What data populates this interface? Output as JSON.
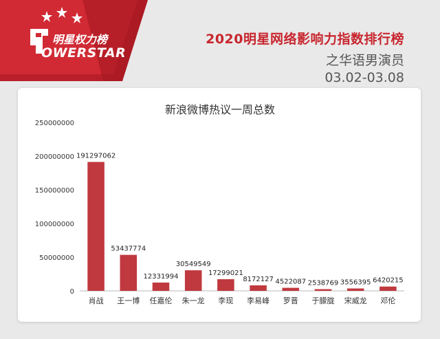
{
  "header": {
    "logo_cn": "明星权力榜",
    "logo_en": "OWERSTAR",
    "title": "2020明星网络影响力指数排行榜",
    "subtitle": "之华语男演员",
    "date_range": "03.02-03.08"
  },
  "colors": {
    "brand_red": "#c8262e",
    "bar": "#c0393f"
  },
  "chart_data": {
    "type": "bar",
    "title": "新浪微博热议一周总数",
    "categories": [
      "肖战",
      "王一博",
      "任嘉伦",
      "朱一龙",
      "李现",
      "李易峰",
      "罗晋",
      "于朦胧",
      "宋威龙",
      "邓伦"
    ],
    "values": [
      191297062,
      53437774,
      12331994,
      30549549,
      17299021,
      8172127,
      4522087,
      2538769,
      3556395,
      6420215
    ],
    "ylim": [
      0,
      250000000
    ],
    "yticks": [
      0,
      50000000,
      100000000,
      150000000,
      200000000,
      250000000
    ],
    "grid": false,
    "legend": "none"
  }
}
